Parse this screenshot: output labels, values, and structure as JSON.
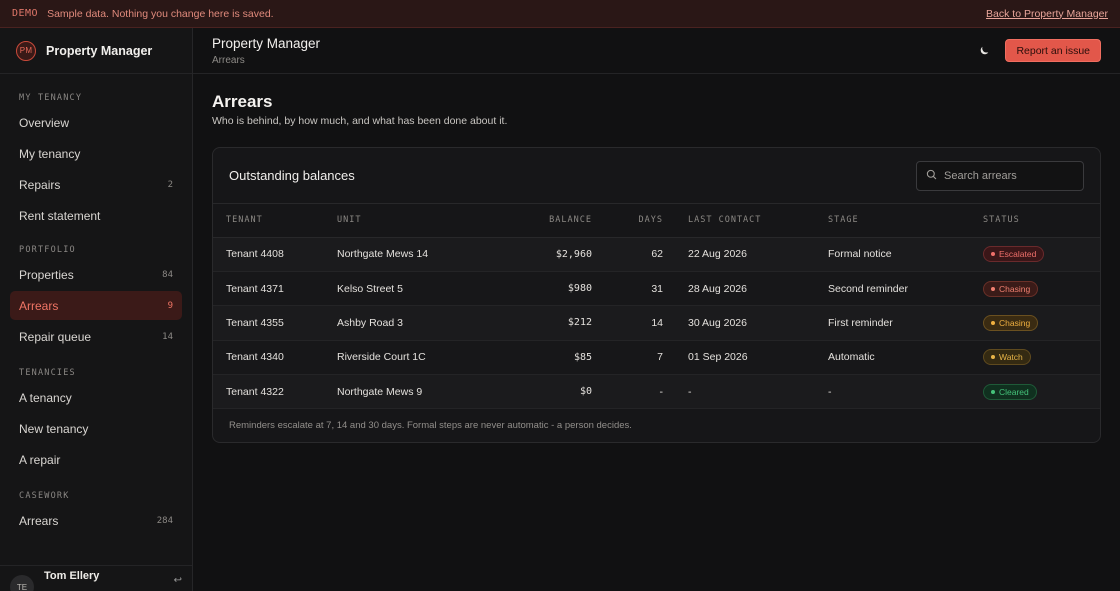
{
  "banner": {
    "tag": "DEMO",
    "message": "Sample data. Nothing you change here is saved.",
    "back_link": "Back to Property Manager"
  },
  "brand": {
    "initials": "PM",
    "name": "Property Manager"
  },
  "sidebar": {
    "sections": [
      {
        "heading": "MY TENANCY",
        "items": [
          {
            "label": "Overview",
            "count": ""
          },
          {
            "label": "My tenancy",
            "count": ""
          },
          {
            "label": "Repairs",
            "count": "2"
          },
          {
            "label": "Rent statement",
            "count": ""
          }
        ]
      },
      {
        "heading": "PORTFOLIO",
        "items": [
          {
            "label": "Properties",
            "count": "84"
          },
          {
            "label": "Arrears",
            "count": "9",
            "active": true
          },
          {
            "label": "Repair queue",
            "count": "14"
          }
        ]
      },
      {
        "heading": "TENANCIES",
        "items": [
          {
            "label": "A tenancy",
            "count": ""
          },
          {
            "label": "New tenancy",
            "count": ""
          },
          {
            "label": "A repair",
            "count": ""
          }
        ]
      },
      {
        "heading": "CASEWORK",
        "items": [
          {
            "label": "Arrears",
            "count": "284"
          }
        ]
      }
    ]
  },
  "user": {
    "initials": "TE",
    "name": "Tom Ellery"
  },
  "header": {
    "title": "Property Manager",
    "breadcrumb": "Arrears",
    "report_button": "Report an issue"
  },
  "page": {
    "title": "Arrears",
    "subtitle": "Who is behind, by how much, and what has been done about it."
  },
  "card": {
    "title": "Outstanding balances",
    "search_placeholder": "Search arrears",
    "columns": [
      "TENANT",
      "UNIT",
      "BALANCE",
      "DAYS",
      "LAST CONTACT",
      "STAGE",
      "STATUS"
    ],
    "rows": [
      {
        "tenant": "Tenant 4408",
        "unit": "Northgate Mews 14",
        "balance": "$2,960",
        "days": "62",
        "last_contact": "22 Aug 2026",
        "stage": "Formal notice",
        "status": "Escalated",
        "status_class": "b-esc"
      },
      {
        "tenant": "Tenant 4371",
        "unit": "Kelso Street 5",
        "balance": "$980",
        "days": "31",
        "last_contact": "28 Aug 2026",
        "stage": "Second reminder",
        "status": "Chasing",
        "status_class": "b-chase"
      },
      {
        "tenant": "Tenant 4355",
        "unit": "Ashby Road 3",
        "balance": "$212",
        "days": "14",
        "last_contact": "30 Aug 2026",
        "stage": "First reminder",
        "status": "Chasing",
        "status_class": "b-chase2"
      },
      {
        "tenant": "Tenant 4340",
        "unit": "Riverside Court 1C",
        "balance": "$85",
        "days": "7",
        "last_contact": "01 Sep 2026",
        "stage": "Automatic",
        "status": "Watch",
        "status_class": "b-watch"
      },
      {
        "tenant": "Tenant 4322",
        "unit": "Northgate Mews 9",
        "balance": "$0",
        "days": "-",
        "last_contact": "-",
        "stage": "-",
        "status": "Cleared",
        "status_class": "b-clear"
      }
    ],
    "footer_note": "Reminders escalate at 7, 14 and 30 days. Formal steps are never automatic - a person decides."
  },
  "colors": {
    "accent": "#e2574a",
    "background": "#111112",
    "sidebar_active": "#3b1a18"
  },
  "icons": [
    "moon-icon",
    "search-icon",
    "logout-icon"
  ]
}
